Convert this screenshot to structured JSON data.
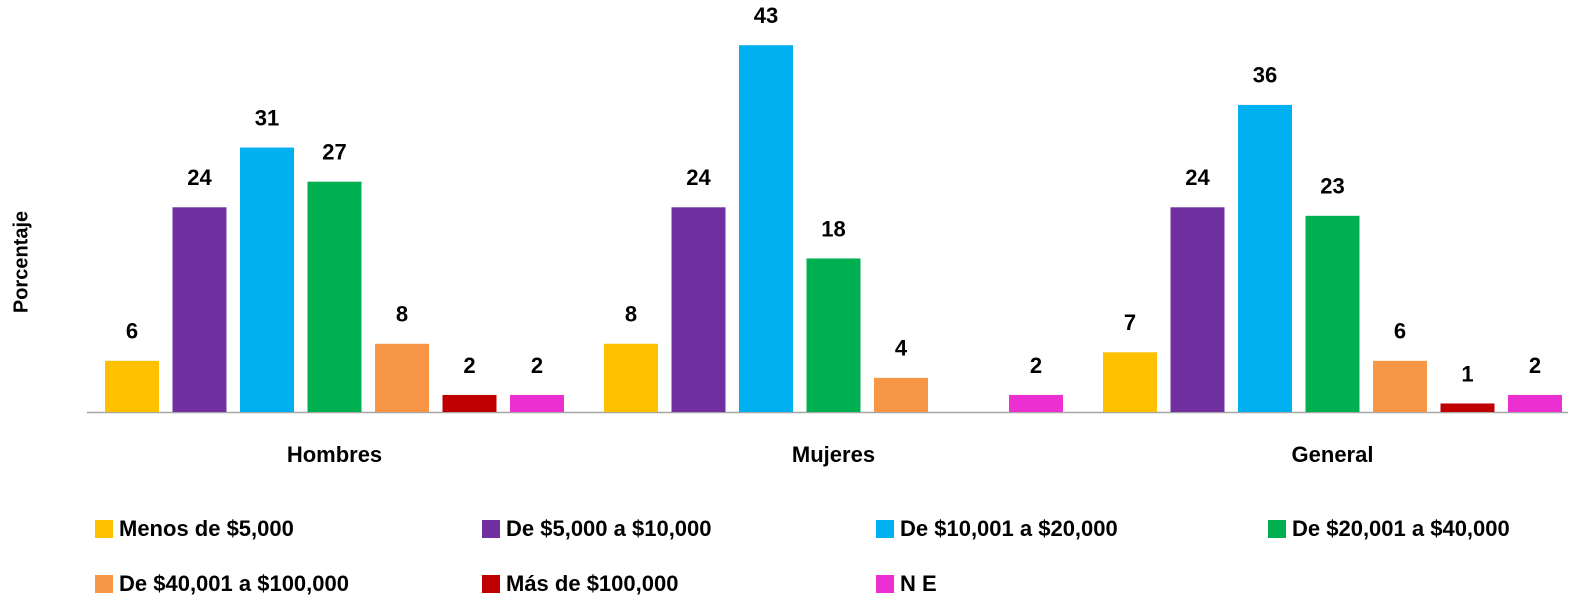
{
  "chart_data": {
    "type": "bar",
    "y_label": "Porcentaje",
    "categories": [
      "Hombres",
      "Mujeres",
      "General"
    ],
    "series": [
      {
        "name": "Menos de $5,000",
        "color": "#FFC000",
        "values": [
          6,
          8,
          7
        ]
      },
      {
        "name": "De $5,000 a $10,000",
        "color": "#7030A0",
        "values": [
          24,
          24,
          24
        ]
      },
      {
        "name": "De $10,001 a $20,000",
        "color": "#00B0F0",
        "values": [
          31,
          43,
          36
        ]
      },
      {
        "name": "De $20,001 a $40,000",
        "color": "#00B050",
        "values": [
          27,
          18,
          23
        ]
      },
      {
        "name": "De $40,001 a $100,000",
        "color": "#F79646",
        "values": [
          8,
          4,
          6
        ]
      },
      {
        "name": "Más de $100,000",
        "color": "#C00000",
        "values": [
          2,
          null,
          1
        ]
      },
      {
        "name": "N E",
        "color": "#EC2FD0",
        "values": [
          2,
          2,
          2
        ]
      }
    ],
    "legend": "bottom"
  }
}
